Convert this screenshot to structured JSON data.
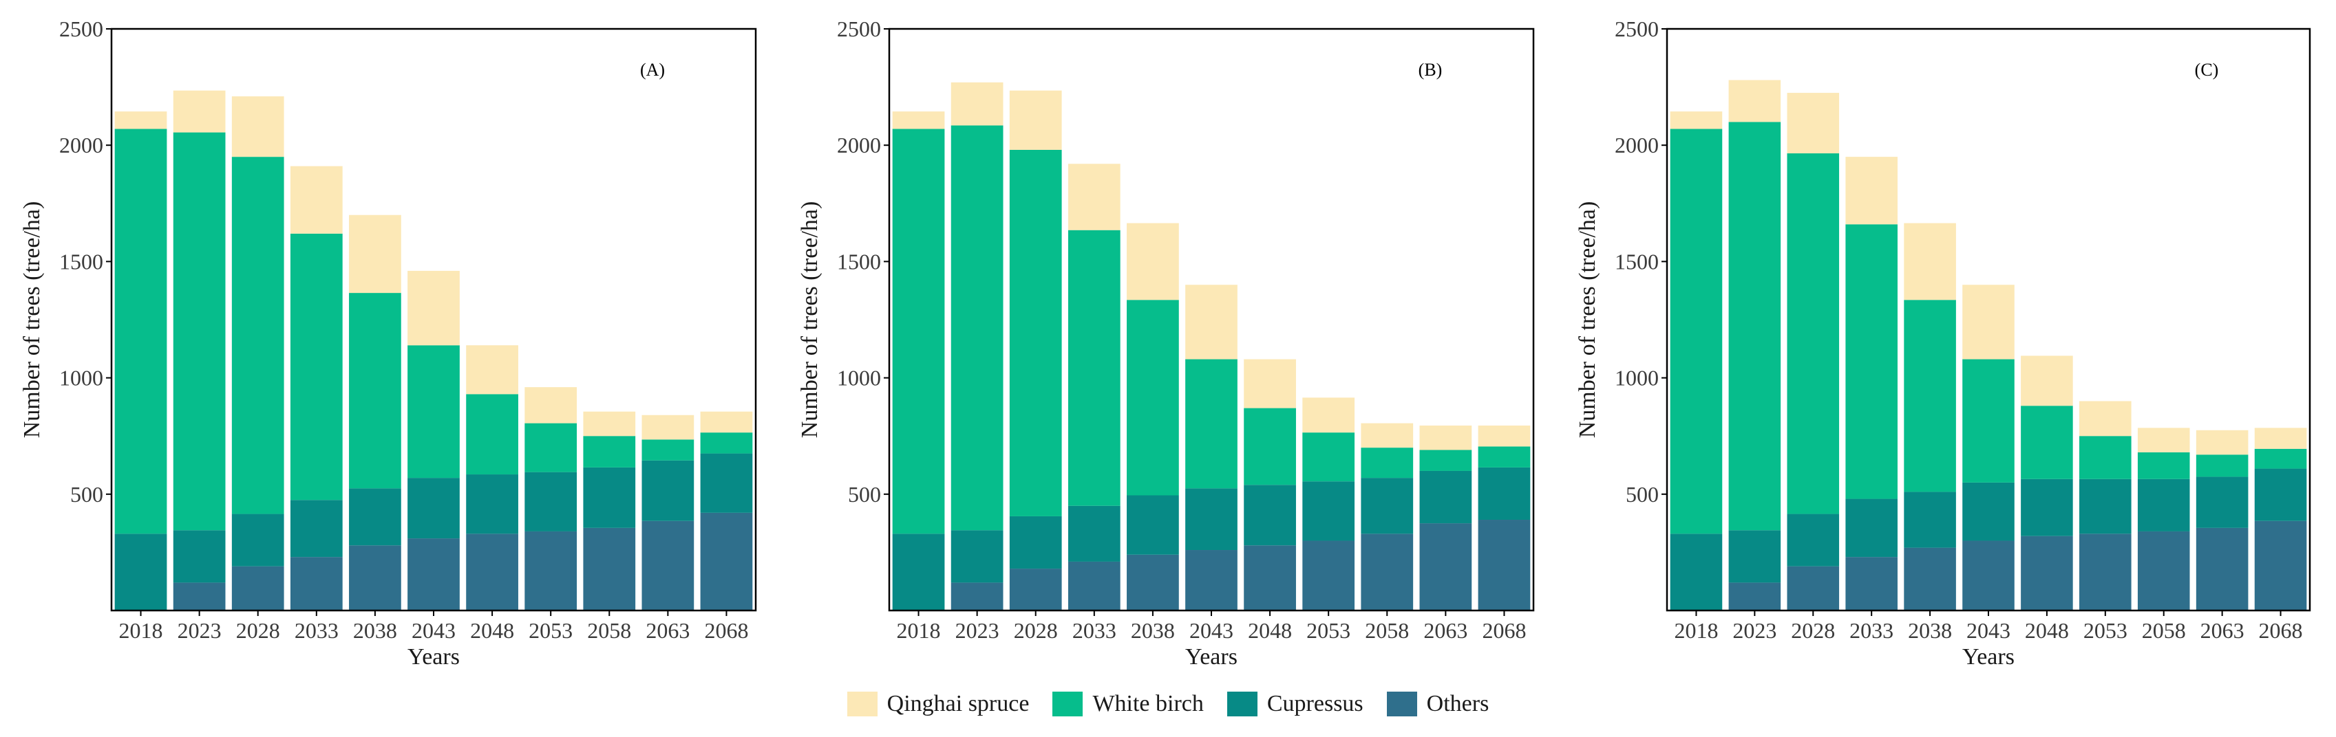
{
  "colors": {
    "qinghai_spruce": "#FCE8B6",
    "white_birch": "#06BD8C",
    "cupressus": "#078A86",
    "others": "#2F6F8C"
  },
  "legend": [
    "Qinghai spruce",
    "White birch",
    "Cupressus",
    "Others"
  ],
  "chart_data": [
    {
      "type": "bar",
      "stacked": true,
      "panel_label": "(A)",
      "xlabel": "Years",
      "ylabel": "Number of trees (tree/ha)",
      "ylim": [
        0,
        2500
      ],
      "yticks": [
        500,
        1000,
        1500,
        2000,
        2500
      ],
      "categories": [
        "2018",
        "2023",
        "2028",
        "2033",
        "2038",
        "2043",
        "2048",
        "2053",
        "2058",
        "2063",
        "2068"
      ],
      "series": [
        {
          "name": "Others",
          "values": [
            0,
            120,
            190,
            230,
            280,
            310,
            330,
            340,
            355,
            385,
            420
          ]
        },
        {
          "name": "Cupressus",
          "values": [
            330,
            225,
            225,
            245,
            245,
            260,
            255,
            255,
            260,
            260,
            255
          ]
        },
        {
          "name": "White birch",
          "values": [
            1740,
            1710,
            1535,
            1145,
            840,
            570,
            345,
            210,
            135,
            90,
            90
          ]
        },
        {
          "name": "Qinghai spruce",
          "values": [
            75,
            180,
            260,
            290,
            335,
            320,
            210,
            155,
            105,
            105,
            90
          ]
        }
      ]
    },
    {
      "type": "bar",
      "stacked": true,
      "panel_label": "(B)",
      "xlabel": "Years",
      "ylabel": "Number of trees (tree/ha)",
      "ylim": [
        0,
        2500
      ],
      "yticks": [
        500,
        1000,
        1500,
        2000,
        2500
      ],
      "categories": [
        "2018",
        "2023",
        "2028",
        "2033",
        "2038",
        "2043",
        "2048",
        "2053",
        "2058",
        "2063",
        "2068"
      ],
      "series": [
        {
          "name": "Others",
          "values": [
            0,
            120,
            180,
            210,
            240,
            260,
            280,
            300,
            330,
            375,
            390
          ]
        },
        {
          "name": "Cupressus",
          "values": [
            330,
            225,
            225,
            240,
            255,
            265,
            260,
            255,
            240,
            225,
            225
          ]
        },
        {
          "name": "White birch",
          "values": [
            1740,
            1740,
            1575,
            1185,
            840,
            555,
            330,
            210,
            130,
            90,
            90
          ]
        },
        {
          "name": "Qinghai spruce",
          "values": [
            75,
            185,
            255,
            285,
            330,
            320,
            210,
            150,
            105,
            105,
            90
          ]
        }
      ]
    },
    {
      "type": "bar",
      "stacked": true,
      "panel_label": "(C)",
      "xlabel": "Years",
      "ylabel": "Number of trees (tree/ha)",
      "ylim": [
        0,
        2500
      ],
      "yticks": [
        500,
        1000,
        1500,
        2000,
        2500
      ],
      "categories": [
        "2018",
        "2023",
        "2028",
        "2033",
        "2038",
        "2043",
        "2048",
        "2053",
        "2058",
        "2063",
        "2068"
      ],
      "series": [
        {
          "name": "Others",
          "values": [
            0,
            120,
            190,
            230,
            270,
            300,
            320,
            330,
            340,
            355,
            385
          ]
        },
        {
          "name": "Cupressus",
          "values": [
            330,
            225,
            225,
            250,
            240,
            250,
            245,
            235,
            225,
            220,
            225
          ]
        },
        {
          "name": "White birch",
          "values": [
            1740,
            1755,
            1550,
            1180,
            825,
            530,
            315,
            185,
            115,
            95,
            85
          ]
        },
        {
          "name": "Qinghai spruce",
          "values": [
            75,
            180,
            260,
            290,
            330,
            320,
            215,
            150,
            105,
            105,
            90
          ]
        }
      ]
    }
  ]
}
